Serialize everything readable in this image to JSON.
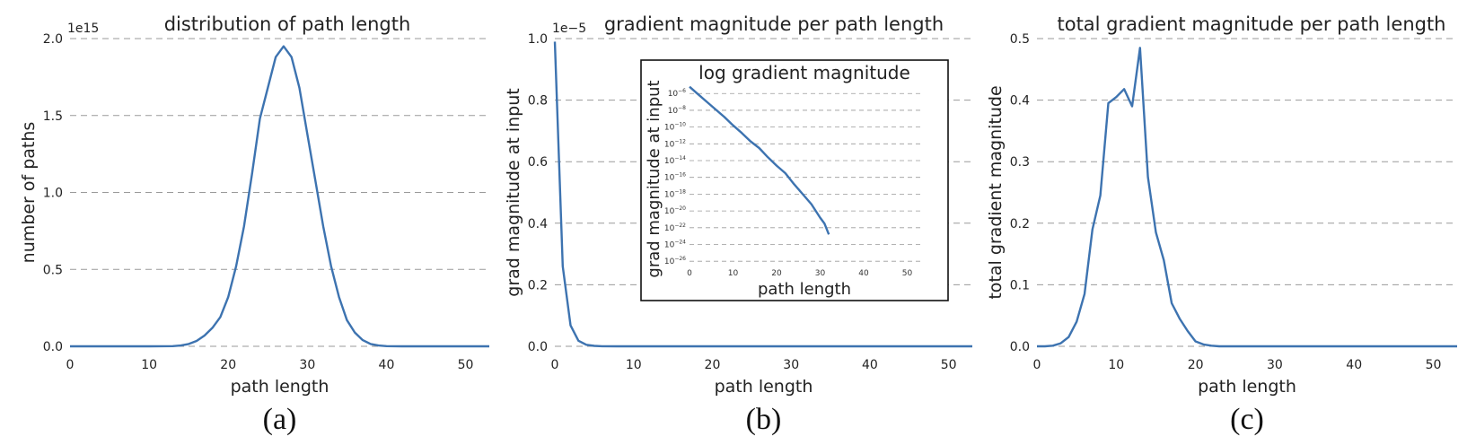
{
  "chart_data": [
    {
      "type": "line",
      "panel_label": "(a)",
      "title": "distribution of path length",
      "xlabel": "path length",
      "ylabel": "number of paths",
      "y_multiplier": "1e15",
      "xlim": [
        0,
        53
      ],
      "ylim": [
        0,
        2.0
      ],
      "xticks": [
        0,
        10,
        20,
        30,
        40,
        50
      ],
      "yticks": [
        0.0,
        0.5,
        1.0,
        1.5,
        2.0
      ],
      "ytick_labels": [
        "0.0",
        "0.5",
        "1.0",
        "1.5",
        "2.0"
      ],
      "grid": "horizontal dashed",
      "color": "#3d73b0",
      "series": [
        {
          "x": [
            0,
            5,
            10,
            13,
            14,
            15,
            16,
            17,
            18,
            19,
            20,
            21,
            22,
            23,
            24,
            25,
            26,
            27,
            28,
            29,
            30,
            31,
            32,
            33,
            34,
            35,
            36,
            37,
            38,
            39,
            40,
            42,
            45,
            50,
            53
          ],
          "values": [
            0,
            0,
            0,
            0.001,
            0.005,
            0.015,
            0.035,
            0.07,
            0.12,
            0.19,
            0.32,
            0.52,
            0.78,
            1.12,
            1.48,
            1.68,
            1.88,
            1.95,
            1.88,
            1.68,
            1.38,
            1.08,
            0.78,
            0.52,
            0.32,
            0.17,
            0.09,
            0.04,
            0.015,
            0.005,
            0.001,
            0,
            0,
            0,
            0
          ]
        }
      ]
    },
    {
      "type": "line",
      "panel_label": "(b)",
      "title": "gradient magnitude per path length",
      "xlabel": "path length",
      "ylabel": "grad magnitude at input",
      "y_multiplier": "1e−5",
      "xlim": [
        0,
        53
      ],
      "ylim": [
        0,
        1.0
      ],
      "xticks": [
        0,
        10,
        20,
        30,
        40,
        50
      ],
      "yticks": [
        0.0,
        0.2,
        0.4,
        0.6,
        0.8,
        1.0
      ],
      "ytick_labels": [
        "0.0",
        "0.2",
        "0.4",
        "0.6",
        "0.8",
        "1.0"
      ],
      "grid": "horizontal dashed",
      "color": "#3d73b0",
      "series": [
        {
          "x": [
            0,
            1,
            2,
            3,
            4,
            5,
            6,
            8,
            10,
            20,
            30,
            40,
            53
          ],
          "values": [
            0.99,
            0.26,
            0.068,
            0.018,
            0.005,
            0.0015,
            0.0004,
            0,
            0,
            0,
            0,
            0,
            0
          ]
        }
      ],
      "inset": {
        "title": "log gradient magnitude",
        "xlabel": "path length",
        "ylabel": "grad magnitude at input",
        "scale": "log",
        "xlim": [
          0,
          53
        ],
        "xticks": [
          0,
          10,
          20,
          30,
          40,
          50
        ],
        "ytick_exponents": [
          -26,
          -24,
          -22,
          -20,
          -18,
          -16,
          -14,
          -12,
          -10,
          -8,
          -6
        ],
        "ylim_exponent": [
          -26.3,
          -4.8
        ],
        "series": [
          {
            "x": [
              0,
              2,
              4,
              6,
              8,
              10,
              12,
              14,
              16,
              18,
              20,
              22,
              24,
              26,
              28,
              30,
              31,
              32
            ],
            "log10_values": [
              -5.2,
              -6.1,
              -7.0,
              -7.9,
              -8.8,
              -9.8,
              -10.7,
              -11.7,
              -12.5,
              -13.6,
              -14.6,
              -15.5,
              -16.8,
              -18.0,
              -19.2,
              -20.8,
              -21.5,
              -22.8
            ]
          }
        ]
      }
    },
    {
      "type": "line",
      "panel_label": "(c)",
      "title": "total gradient magnitude per path length",
      "xlabel": "path length",
      "ylabel": "total gradient magnitude",
      "xlim": [
        0,
        53
      ],
      "ylim": [
        0,
        0.5
      ],
      "xticks": [
        0,
        10,
        20,
        30,
        40,
        50
      ],
      "yticks": [
        0.0,
        0.1,
        0.2,
        0.3,
        0.4,
        0.5
      ],
      "ytick_labels": [
        "0.0",
        "0.1",
        "0.2",
        "0.3",
        "0.4",
        "0.5"
      ],
      "grid": "horizontal dashed",
      "color": "#3d73b0",
      "series": [
        {
          "x": [
            0,
            1,
            2,
            3,
            4,
            5,
            6,
            7,
            8,
            9,
            10,
            11,
            12,
            13,
            14,
            15,
            16,
            17,
            18,
            19,
            20,
            21,
            22,
            23,
            25,
            30,
            40,
            53
          ],
          "values": [
            0,
            0,
            0.001,
            0.005,
            0.015,
            0.04,
            0.085,
            0.19,
            0.245,
            0.395,
            0.405,
            0.418,
            0.39,
            0.485,
            0.275,
            0.185,
            0.14,
            0.07,
            0.045,
            0.025,
            0.008,
            0.003,
            0.001,
            0,
            0,
            0,
            0,
            0
          ]
        }
      ]
    }
  ]
}
